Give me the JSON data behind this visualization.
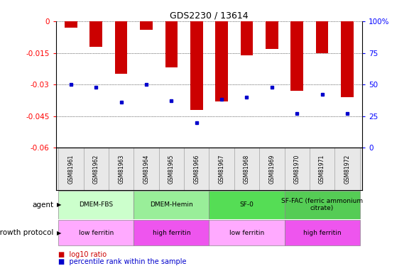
{
  "title": "GDS2230 / 13614",
  "samples": [
    "GSM81961",
    "GSM81962",
    "GSM81963",
    "GSM81964",
    "GSM81965",
    "GSM81966",
    "GSM81967",
    "GSM81968",
    "GSM81969",
    "GSM81970",
    "GSM81971",
    "GSM81972"
  ],
  "log10_ratio": [
    -0.003,
    -0.012,
    -0.025,
    -0.004,
    -0.022,
    -0.042,
    -0.038,
    -0.016,
    -0.013,
    -0.033,
    -0.015,
    -0.036
  ],
  "percentile_rank": [
    50,
    48,
    36,
    50,
    37,
    20,
    38,
    40,
    48,
    27,
    42,
    27
  ],
  "bar_color": "#cc0000",
  "dot_color": "#0000cc",
  "ylim_left": [
    -0.06,
    0.0
  ],
  "ylim_right": [
    0,
    100
  ],
  "yticks_left": [
    -0.06,
    -0.045,
    -0.03,
    -0.015,
    0
  ],
  "yticks_right": [
    0,
    25,
    50,
    75,
    100
  ],
  "agent_groups": [
    {
      "label": "DMEM-FBS",
      "start": 0,
      "end": 3,
      "color": "#ccffcc"
    },
    {
      "label": "DMEM-Hemin",
      "start": 3,
      "end": 6,
      "color": "#99ee99"
    },
    {
      "label": "SF-0",
      "start": 6,
      "end": 9,
      "color": "#55dd55"
    },
    {
      "label": "SF-FAC (ferric ammonium\ncitrate)",
      "start": 9,
      "end": 12,
      "color": "#55cc55"
    }
  ],
  "protocol_groups": [
    {
      "label": "low ferritin",
      "start": 0,
      "end": 3,
      "color": "#ffaaff"
    },
    {
      "label": "high ferritin",
      "start": 3,
      "end": 6,
      "color": "#ee55ee"
    },
    {
      "label": "low ferritin",
      "start": 6,
      "end": 9,
      "color": "#ffaaff"
    },
    {
      "label": "high ferritin",
      "start": 9,
      "end": 12,
      "color": "#ee55ee"
    }
  ],
  "sample_box_color": "#e8e8e8",
  "sample_box_edge": "#aaaaaa",
  "bar_width": 0.5,
  "legend_red_label": "log10 ratio",
  "legend_blue_label": "percentile rank within the sample"
}
